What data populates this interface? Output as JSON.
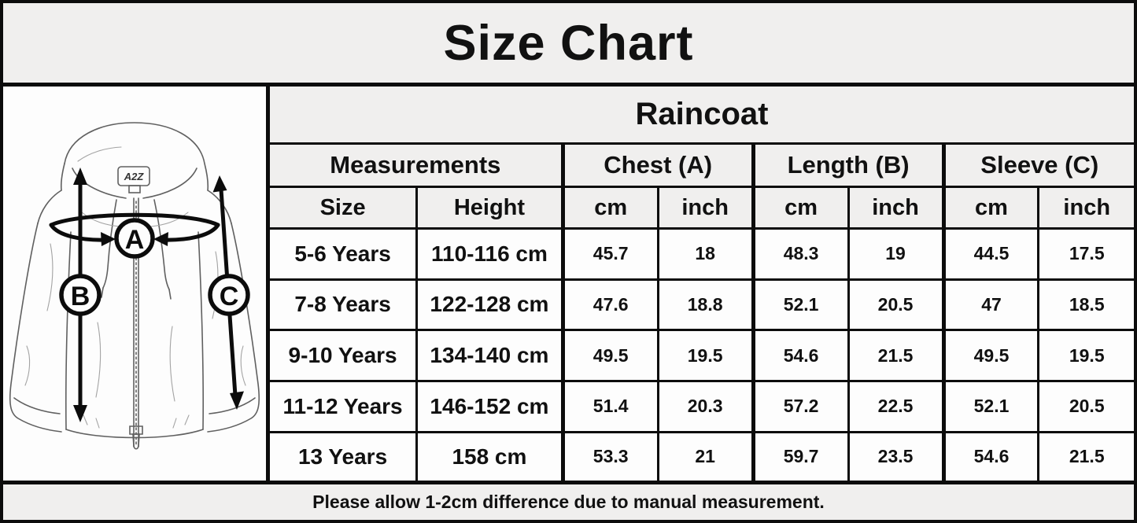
{
  "title": "Size Chart",
  "chart_data": {
    "type": "table",
    "title": "Size Chart",
    "product": "Raincoat",
    "group_headers": [
      "Measurements",
      "Chest (A)",
      "Length (B)",
      "Sleeve (C)"
    ],
    "sub_headers": [
      "Size",
      "Height",
      "cm",
      "inch",
      "cm",
      "inch",
      "cm",
      "inch"
    ],
    "rows": [
      [
        "5-6 Years",
        "110-116 cm",
        45.7,
        18,
        48.3,
        19,
        44.5,
        17.5
      ],
      [
        "7-8 Years",
        "122-128 cm",
        47.6,
        18.8,
        52.1,
        20.5,
        47,
        18.5
      ],
      [
        "9-10 Years",
        "134-140 cm",
        49.5,
        19.5,
        54.6,
        21.5,
        49.5,
        19.5
      ],
      [
        "11-12 Years",
        "146-152 cm",
        51.4,
        20.3,
        57.2,
        22.5,
        52.1,
        20.5
      ],
      [
        "13 Years",
        "158 cm",
        53.3,
        21,
        59.7,
        23.5,
        54.6,
        21.5
      ]
    ],
    "footer_note": "Please allow 1-2cm difference due to manual measurement."
  },
  "diagram": {
    "brand_tag": "A2Z",
    "markers": {
      "chest": "A",
      "length": "B",
      "sleeve": "C"
    }
  },
  "colors": {
    "line": "#0c0c0c",
    "band_bg": "#f0efee",
    "cell_bg": "#fdfdfd"
  }
}
